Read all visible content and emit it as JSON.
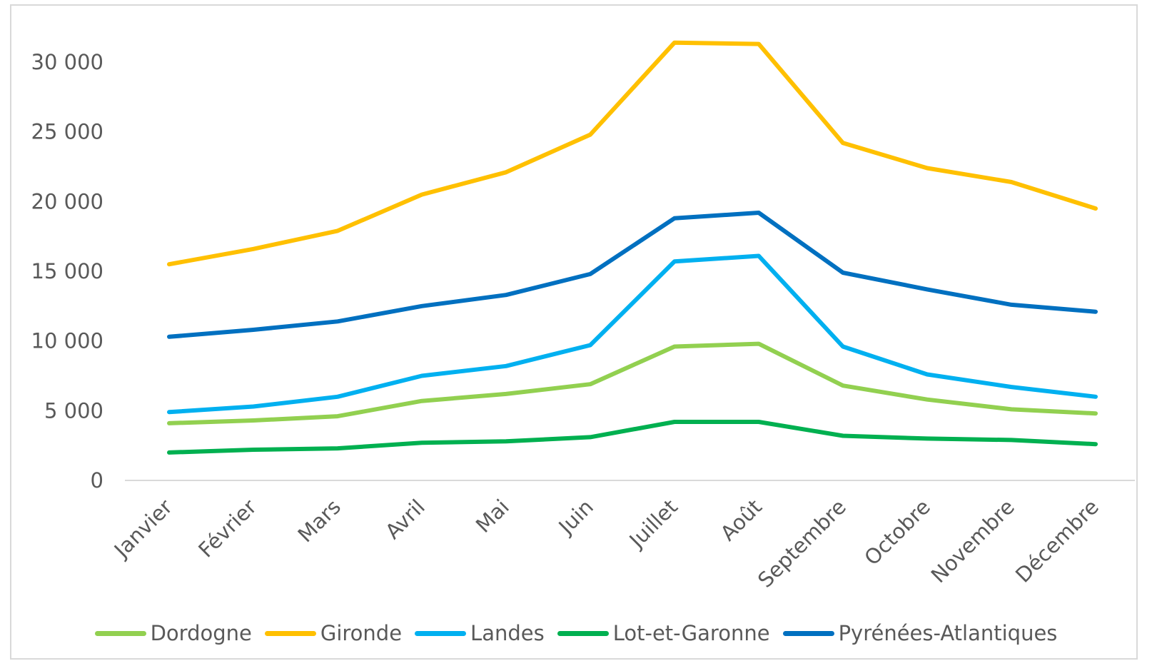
{
  "chart_data": {
    "type": "line",
    "title": "",
    "xlabel": "",
    "ylabel": "",
    "categories": [
      "Janvier",
      "Février",
      "Mars",
      "Avril",
      "Mai",
      "Juin",
      "Juillet",
      "Août",
      "Septembre",
      "Octobre",
      "Novembre",
      "Décembre"
    ],
    "ylim": [
      0,
      30000
    ],
    "yticks": [
      0,
      5000,
      10000,
      15000,
      20000,
      25000,
      30000
    ],
    "ytick_labels": [
      "0",
      "5 000",
      "10 000",
      "15 000",
      "20 000",
      "25 000",
      "30 000"
    ],
    "grid": false,
    "legend_position": "bottom",
    "series": [
      {
        "name": "Dordogne",
        "color": "#92D050",
        "values": [
          4100,
          4300,
          4600,
          5700,
          6200,
          6900,
          9600,
          9800,
          6800,
          5800,
          5100,
          4800
        ]
      },
      {
        "name": "Gironde",
        "color": "#FFC000",
        "values": [
          15500,
          16600,
          17900,
          20500,
          22100,
          24800,
          31400,
          31300,
          24200,
          22400,
          21400,
          19500
        ]
      },
      {
        "name": "Landes",
        "color": "#00B0F0",
        "values": [
          4900,
          5300,
          6000,
          7500,
          8200,
          9700,
          15700,
          16100,
          9600,
          7600,
          6700,
          6000
        ]
      },
      {
        "name": "Lot-et-Garonne",
        "color": "#00B050",
        "values": [
          2000,
          2200,
          2300,
          2700,
          2800,
          3100,
          4200,
          4200,
          3200,
          3000,
          2900,
          2600
        ]
      },
      {
        "name": "Pyrénées-Atlantiques",
        "color": "#0070C0",
        "values": [
          10300,
          10800,
          11400,
          12500,
          13300,
          14800,
          18800,
          19200,
          14900,
          13700,
          12600,
          12100
        ]
      }
    ]
  }
}
